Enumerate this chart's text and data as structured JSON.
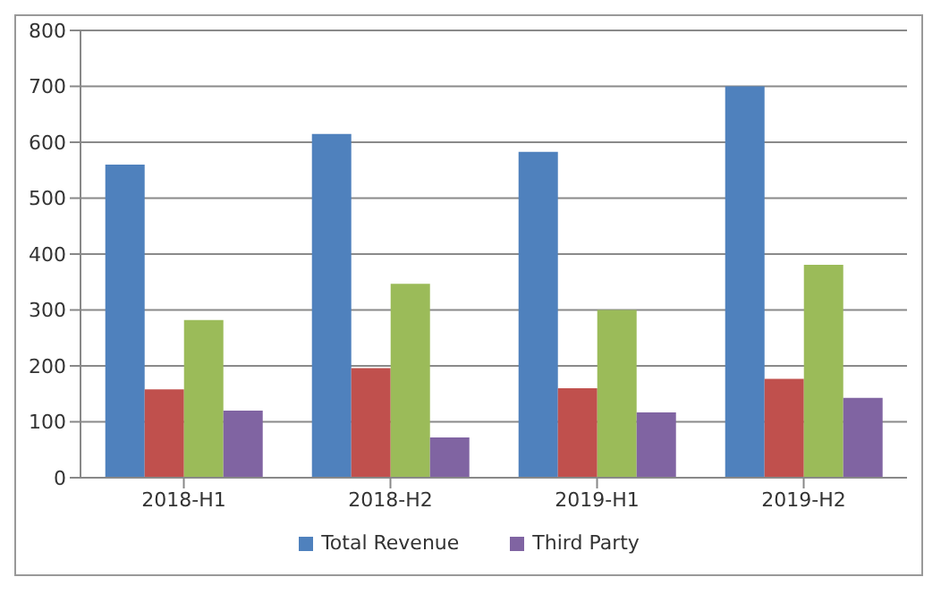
{
  "chart_data": {
    "type": "bar",
    "categories": [
      "2018-H1",
      "2018-H2",
      "2019-H1",
      "2019-H2"
    ],
    "series": [
      {
        "name": "Total Revenue",
        "color": "#4f81bd",
        "values": [
          560,
          615,
          583,
          700
        ]
      },
      {
        "color": "#c0504d",
        "values": [
          158,
          196,
          160,
          177
        ]
      },
      {
        "color": "#9bbb59",
        "values": [
          282,
          347,
          300,
          381
        ]
      },
      {
        "name": "Third Party",
        "color": "#8064a2",
        "values": [
          120,
          72,
          117,
          143
        ]
      }
    ],
    "ylim": [
      0,
      800
    ],
    "yticks": [
      0,
      100,
      200,
      300,
      400,
      500,
      600,
      700,
      800
    ],
    "grid": "y",
    "legend": "bottom"
  }
}
